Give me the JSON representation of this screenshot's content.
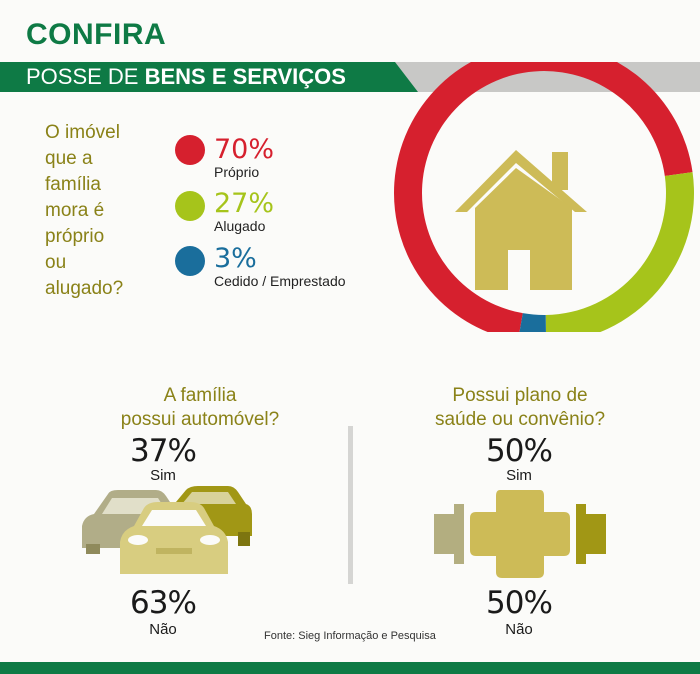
{
  "header": {
    "title": "CONFIRA",
    "subtitle_prefix": "POSSE DE ",
    "subtitle_bold": "BENS E SERVIÇOS"
  },
  "housing": {
    "question": "O imóvel\nque a\nfamília\nmora é\npróprio\nou\nalugado?",
    "items": [
      {
        "pct": "70%",
        "label": "Próprio",
        "color": "#d6202e"
      },
      {
        "pct": "27%",
        "label": "Alugado",
        "color": "#a6c41b"
      },
      {
        "pct": "3%",
        "label": "Cedido / Emprestado",
        "color": "#1a6e9c"
      }
    ],
    "icon": "house-icon"
  },
  "car": {
    "question_l1": "A família",
    "question_l2": "possui automóvel?",
    "yes_pct": "37%",
    "yes_label": "Sim",
    "no_pct": "63%",
    "no_label": "Não",
    "icon": "cars-icon"
  },
  "health": {
    "question_l1": "Possui plano de",
    "question_l2": "saúde ou convênio?",
    "yes_pct": "50%",
    "yes_label": "Sim",
    "no_pct": "50%",
    "no_label": "Não",
    "icon": "health-cross-icon"
  },
  "source": "Fonte: Sieg Informação e Pesquisa",
  "chart_data": [
    {
      "type": "pie",
      "title": "O imóvel que a família mora é próprio ou alugado?",
      "categories": [
        "Próprio",
        "Alugado",
        "Cedido / Emprestado"
      ],
      "values": [
        70,
        27,
        3
      ],
      "colors": [
        "#d6202e",
        "#a6c41b",
        "#1a6e9c"
      ]
    },
    {
      "type": "table",
      "title": "A família possui automóvel?",
      "categories": [
        "Sim",
        "Não"
      ],
      "values": [
        37,
        63
      ]
    },
    {
      "type": "table",
      "title": "Possui plano de saúde ou convênio?",
      "categories": [
        "Sim",
        "Não"
      ],
      "values": [
        50,
        50
      ]
    }
  ]
}
